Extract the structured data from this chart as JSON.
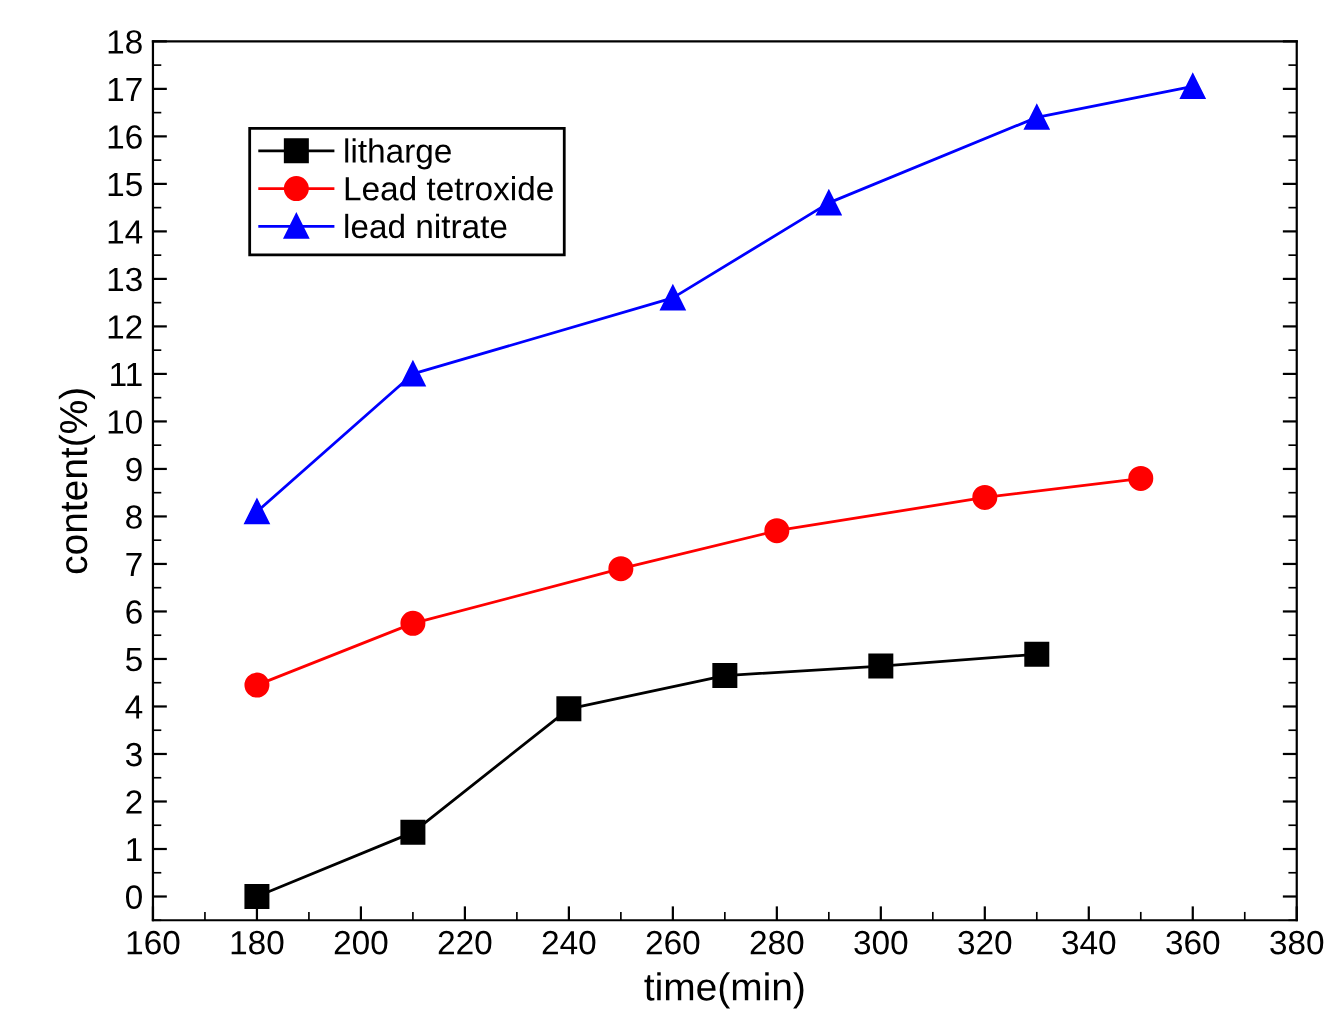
{
  "chart_data": {
    "type": "line",
    "xlabel": "time(min)",
    "ylabel": "content(%)",
    "xlim": [
      160,
      380
    ],
    "xticks": [
      160,
      180,
      200,
      220,
      240,
      260,
      280,
      300,
      320,
      340,
      360,
      380
    ],
    "ylim": [
      -0.5,
      18
    ],
    "yticks": [
      0,
      1,
      2,
      3,
      4,
      5,
      6,
      7,
      8,
      9,
      10,
      11,
      12,
      13,
      14,
      15,
      16,
      17,
      18
    ],
    "grid": false,
    "legend": "top left",
    "line_style": "solid",
    "series": [
      {
        "name": "litharge",
        "color": "#000000",
        "marker": "square",
        "x": [
          180,
          210,
          240,
          270,
          300,
          330
        ],
        "values": [
          0,
          1.35,
          3.95,
          4.65,
          4.85,
          5.1
        ]
      },
      {
        "name": "Lead tetroxide",
        "color": "#ff0000",
        "marker": "circle",
        "x": [
          180,
          210,
          250,
          280,
          320,
          350
        ],
        "values": [
          4.45,
          5.75,
          6.9,
          7.7,
          8.4,
          8.8
        ]
      },
      {
        "name": "lead nitrate",
        "color": "#0000ff",
        "marker": "triangle",
        "x": [
          180,
          210,
          260,
          290,
          330,
          360
        ],
        "values": [
          8.1,
          11.0,
          12.6,
          14.6,
          16.4,
          17.05
        ]
      }
    ]
  }
}
